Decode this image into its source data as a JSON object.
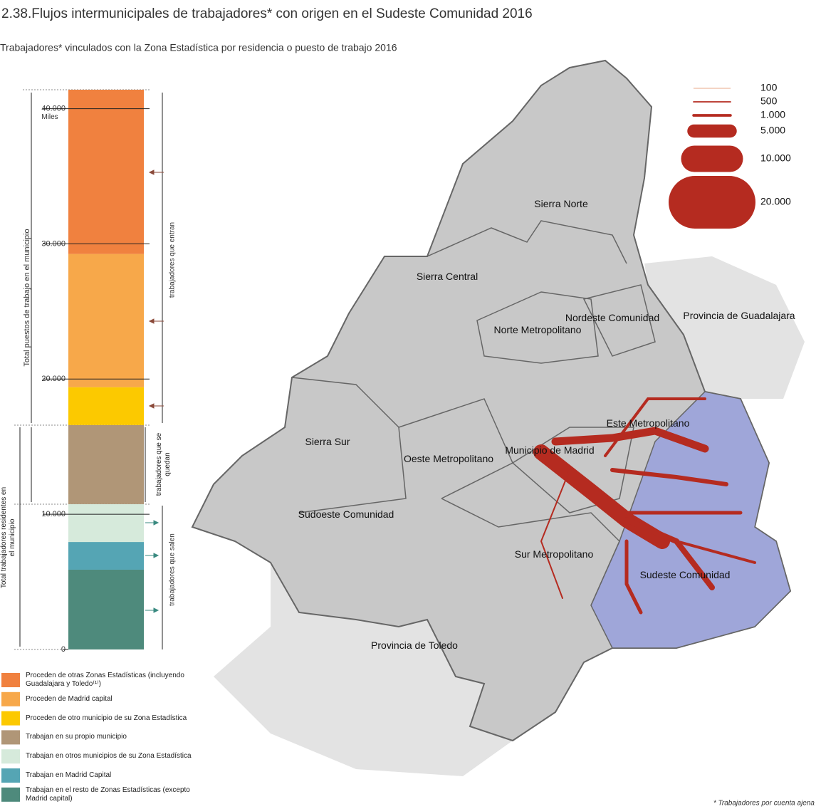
{
  "title": "2.38.Flujos intermunicipales de trabajadores* con origen en el Sudeste Comunidad 2016",
  "subtitle": "Trabajadores* vinculados con la Zona Estadística por residencia o puesto de trabajo 2016",
  "chart_data": {
    "type": "stacked-bar",
    "categories": [
      null
    ],
    "y_unit_label": "Miles",
    "ylim": [
      0,
      41400
    ],
    "yticks": [
      0,
      {
        "value": 10000,
        "label": "10.000"
      },
      {
        "value": 20000,
        "label": "20.000"
      },
      {
        "value": 30000,
        "label": "30.000"
      },
      {
        "value": 40000,
        "label": "40.000"
      }
    ],
    "series": [
      {
        "name": "Proceden de otras Zonas Estadísticas (incluyendo Guadalajara y Toledo⁽¹⁾)",
        "color": "#f0813f",
        "values": [
          12150
        ]
      },
      {
        "name": "Proceden de Madrid capital",
        "color": "#f7a84a",
        "values": [
          9850
        ]
      },
      {
        "name": "Proceden de otro municipio de su Zona Estadística",
        "color": "#fcc900",
        "values": [
          2800
        ]
      },
      {
        "name": "Trabajan en su propio municipio",
        "color": "#b09677",
        "values": [
          5850
        ]
      },
      {
        "name": "Trabajan en otros municipios de su Zona Estadística",
        "color": "#d6eadb",
        "values": [
          2800
        ]
      },
      {
        "name": "Trabajan en Madrid Capital",
        "color": "#55a5b4",
        "values": [
          2050
        ]
      },
      {
        "name": "Trabajan en el resto de Zonas Estadísticas (excepto Madrid capital)",
        "color": "#4e8a7c",
        "values": [
          5900
        ]
      }
    ],
    "bracket_labels": [
      "Total puestos de trabajo en el municipio",
      "Total trabajadores residentes en el municipio",
      "trabajadores que entran",
      "trabajadores que se quedan",
      "trabajadores que salen"
    ]
  },
  "map": {
    "regions": [
      "Sierra Norte",
      "Sierra Central",
      "Norte Metropolitano",
      "Nordeste Comunidad",
      "Provincia de Guadalajara",
      "Este Metropolitano",
      "Municipio de Madrid",
      "Sierra Sur",
      "Oeste Metropolitano",
      "Sudoeste Comunidad",
      "Sur Metropolitano",
      "Sudeste Comunidad",
      "Provincia de Toledo"
    ],
    "flow_legend": [
      {
        "value": 100,
        "label": "100"
      },
      {
        "value": 500,
        "label": "500"
      },
      {
        "value": 1000,
        "label": "1.000"
      },
      {
        "value": 5000,
        "label": "5.000"
      },
      {
        "value": 10000,
        "label": "10.000"
      },
      {
        "value": 20000,
        "label": "20.000"
      }
    ]
  },
  "footnote": "* Trabajadores por cuenta ajena"
}
